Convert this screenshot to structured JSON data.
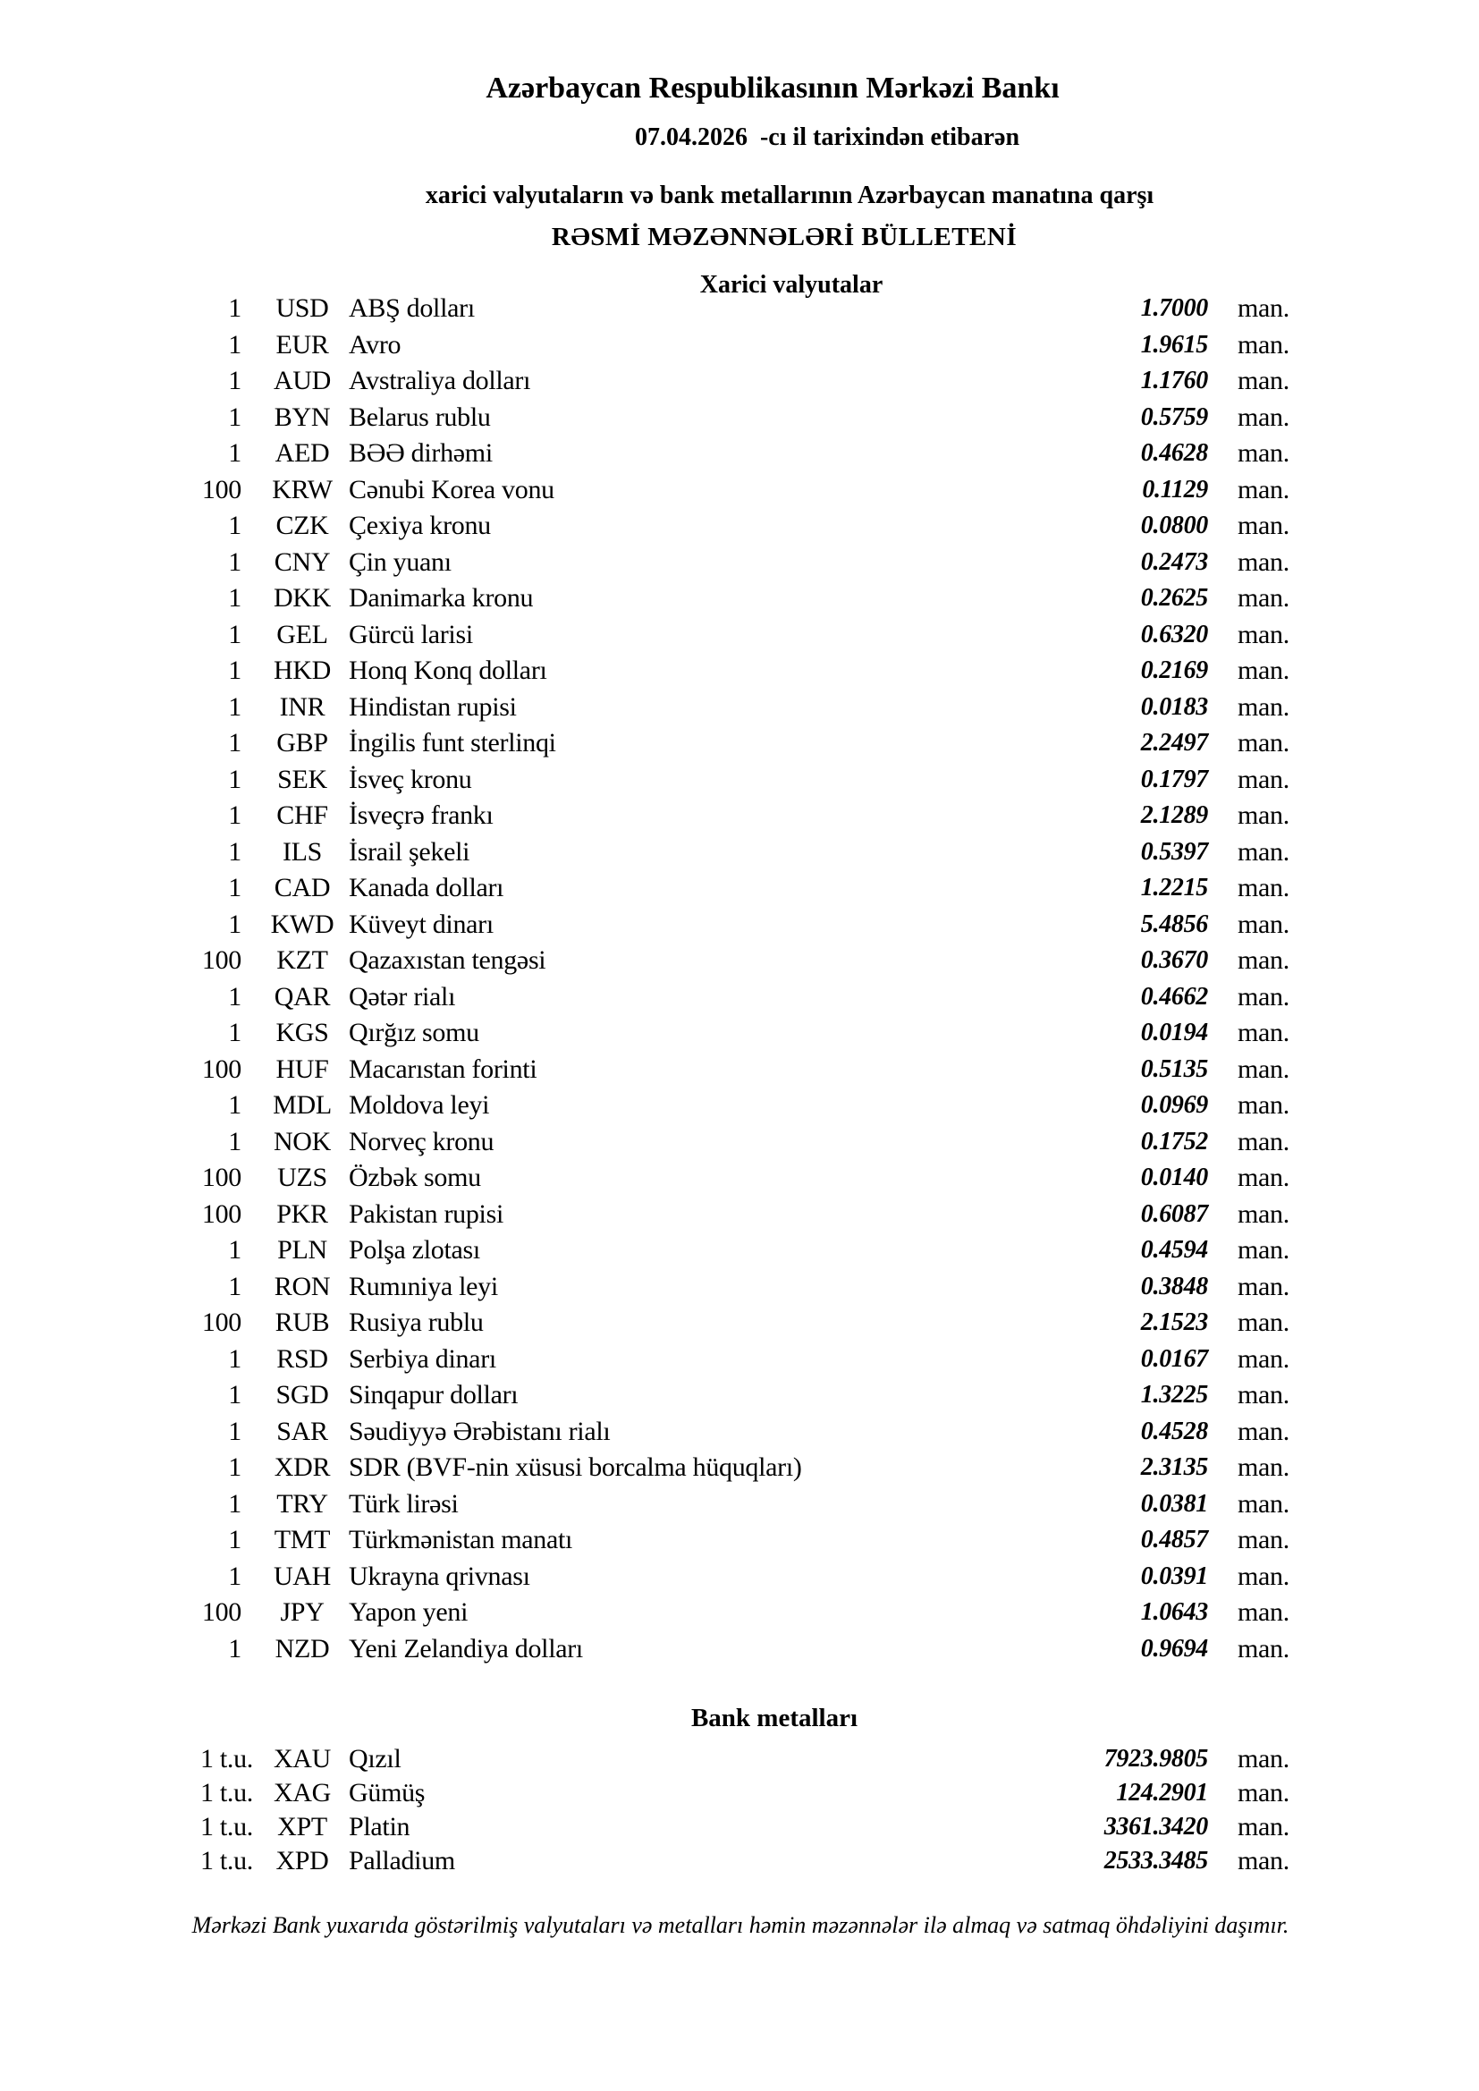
{
  "header": {
    "bank_name": "Azərbaycan Respublikasının Mərkəzi Bankı",
    "date": "07.04.2026",
    "date_suffix": "-cı il tarixindən etibarən",
    "subtitle": "xarici valyutaların və bank metallarının Azərbaycan manatına qarşı",
    "bulletin_title": "RƏSMİ MƏZƏNNƏLƏRİ BÜLLETENİ"
  },
  "currency_section": {
    "title": "Xarici valyutalar",
    "rows": [
      {
        "qty": "1",
        "code": "USD",
        "name": "ABŞ dolları",
        "rate": "1.7000",
        "unit": "man."
      },
      {
        "qty": "1",
        "code": "EUR",
        "name": "Avro",
        "rate": "1.9615",
        "unit": "man."
      },
      {
        "qty": "1",
        "code": "AUD",
        "name": "Avstraliya dolları",
        "rate": "1.1760",
        "unit": "man."
      },
      {
        "qty": "1",
        "code": "BYN",
        "name": "Belarus rublu",
        "rate": "0.5759",
        "unit": "man."
      },
      {
        "qty": "1",
        "code": "AED",
        "name": "BƏƏ dirhəmi",
        "rate": "0.4628",
        "unit": "man."
      },
      {
        "qty": "100",
        "code": "KRW",
        "name": "Cənubi Korea vonu",
        "rate": "0.1129",
        "unit": "man."
      },
      {
        "qty": "1",
        "code": "CZK",
        "name": "Çexiya kronu",
        "rate": "0.0800",
        "unit": "man."
      },
      {
        "qty": "1",
        "code": "CNY",
        "name": "Çin yuanı",
        "rate": "0.2473",
        "unit": "man."
      },
      {
        "qty": "1",
        "code": "DKK",
        "name": "Danimarka kronu",
        "rate": "0.2625",
        "unit": "man."
      },
      {
        "qty": "1",
        "code": "GEL",
        "name": "Gürcü larisi",
        "rate": "0.6320",
        "unit": "man."
      },
      {
        "qty": "1",
        "code": "HKD",
        "name": "Honq Konq dolları",
        "rate": "0.2169",
        "unit": "man."
      },
      {
        "qty": "1",
        "code": "INR",
        "name": "Hindistan rupisi",
        "rate": "0.0183",
        "unit": "man."
      },
      {
        "qty": "1",
        "code": "GBP",
        "name": "İngilis funt sterlinqi",
        "rate": "2.2497",
        "unit": "man."
      },
      {
        "qty": "1",
        "code": "SEK",
        "name": "İsveç kronu",
        "rate": "0.1797",
        "unit": "man."
      },
      {
        "qty": "1",
        "code": "CHF",
        "name": "İsveçrə frankı",
        "rate": "2.1289",
        "unit": "man."
      },
      {
        "qty": "1",
        "code": "ILS",
        "name": "İsrail şekeli",
        "rate": "0.5397",
        "unit": "man."
      },
      {
        "qty": "1",
        "code": "CAD",
        "name": "Kanada dolları",
        "rate": "1.2215",
        "unit": "man."
      },
      {
        "qty": "1",
        "code": "KWD",
        "name": "Küveyt dinarı",
        "rate": "5.4856",
        "unit": "man."
      },
      {
        "qty": "100",
        "code": "KZT",
        "name": "Qazaxıstan tengəsi",
        "rate": "0.3670",
        "unit": "man."
      },
      {
        "qty": "1",
        "code": "QAR",
        "name": "Qətər rialı",
        "rate": "0.4662",
        "unit": "man."
      },
      {
        "qty": "1",
        "code": "KGS",
        "name": "Qırğız somu",
        "rate": "0.0194",
        "unit": "man."
      },
      {
        "qty": "100",
        "code": "HUF",
        "name": "Macarıstan forinti",
        "rate": "0.5135",
        "unit": "man."
      },
      {
        "qty": "1",
        "code": "MDL",
        "name": "Moldova leyi",
        "rate": "0.0969",
        "unit": "man."
      },
      {
        "qty": "1",
        "code": "NOK",
        "name": "Norveç kronu",
        "rate": "0.1752",
        "unit": "man."
      },
      {
        "qty": "100",
        "code": "UZS",
        "name": "Özbək somu",
        "rate": "0.0140",
        "unit": "man."
      },
      {
        "qty": "100",
        "code": "PKR",
        "name": "Pakistan rupisi",
        "rate": "0.6087",
        "unit": "man."
      },
      {
        "qty": "1",
        "code": "PLN",
        "name": "Polşa zlotası",
        "rate": "0.4594",
        "unit": "man."
      },
      {
        "qty": "1",
        "code": "RON",
        "name": "Rumıniya leyi",
        "rate": "0.3848",
        "unit": "man."
      },
      {
        "qty": "100",
        "code": "RUB",
        "name": "Rusiya rublu",
        "rate": "2.1523",
        "unit": "man."
      },
      {
        "qty": "1",
        "code": "RSD",
        "name": "Serbiya dinarı",
        "rate": "0.0167",
        "unit": "man."
      },
      {
        "qty": "1",
        "code": "SGD",
        "name": "Sinqapur dolları",
        "rate": "1.3225",
        "unit": "man."
      },
      {
        "qty": "1",
        "code": "SAR",
        "name": "Səudiyyə Ərəbistanı rialı",
        "rate": "0.4528",
        "unit": "man."
      },
      {
        "qty": "1",
        "code": "XDR",
        "name": "SDR (BVF-nin xüsusi borcalma hüquqları)",
        "rate": "2.3135",
        "unit": "man."
      },
      {
        "qty": "1",
        "code": "TRY",
        "name": "Türk lirəsi",
        "rate": "0.0381",
        "unit": "man."
      },
      {
        "qty": "1",
        "code": "TMT",
        "name": "Türkmənistan manatı",
        "rate": "0.4857",
        "unit": "man."
      },
      {
        "qty": "1",
        "code": "UAH",
        "name": "Ukrayna qrivnası",
        "rate": "0.0391",
        "unit": "man."
      },
      {
        "qty": "100",
        "code": "JPY",
        "name": "Yapon yeni",
        "rate": "1.0643",
        "unit": "man."
      },
      {
        "qty": "1",
        "code": "NZD",
        "name": "Yeni Zelandiya dolları",
        "rate": "0.9694",
        "unit": "man."
      }
    ]
  },
  "metals_section": {
    "title": "Bank metalları",
    "rows": [
      {
        "qty": "1 t.u.",
        "code": "XAU",
        "name": "Qızıl",
        "rate": "7923.9805",
        "unit": "man."
      },
      {
        "qty": "1 t.u.",
        "code": "XAG",
        "name": "Gümüş",
        "rate": "124.2901",
        "unit": "man."
      },
      {
        "qty": "1 t.u.",
        "code": "XPT",
        "name": "Platin",
        "rate": "3361.3420",
        "unit": "man."
      },
      {
        "qty": "1 t.u.",
        "code": "XPD",
        "name": "Palladium",
        "rate": "2533.3485",
        "unit": "man."
      }
    ]
  },
  "footer": {
    "note": "Mərkəzi Bank yuxarıda göstərilmiş valyutaları və metalları həmin məzənnələr ilə almaq və satmaq öhdəliyini daşımır."
  }
}
